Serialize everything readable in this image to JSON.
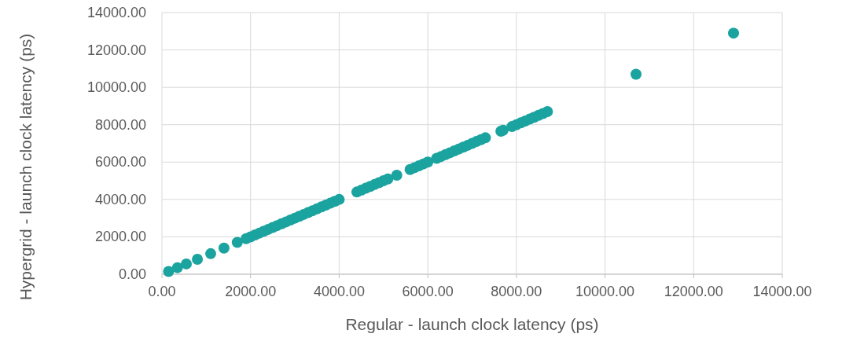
{
  "chart_data": {
    "type": "scatter",
    "xlabel": "Regular - launch clock latency (ps)",
    "ylabel": "Hypergrid - launch clock latency (ps)",
    "x": [
      150,
      350,
      550,
      800,
      1100,
      1400,
      1700,
      1900,
      2000,
      2100,
      2200,
      2300,
      2400,
      2500,
      2600,
      2700,
      2800,
      2900,
      3000,
      3100,
      3200,
      3300,
      3400,
      3500,
      3600,
      3700,
      3800,
      3900,
      4000,
      4400,
      4500,
      4600,
      4700,
      4800,
      4900,
      5000,
      5100,
      5300,
      5600,
      5700,
      5800,
      5900,
      6000,
      6200,
      6300,
      6400,
      6500,
      6600,
      6700,
      6800,
      6900,
      7000,
      7100,
      7200,
      7300,
      7650,
      7700,
      7900,
      8000,
      8100,
      8200,
      8300,
      8400,
      8500,
      8600,
      8700,
      10700,
      12900
    ],
    "series": [
      {
        "color": "#1aa39f",
        "values": [
          150,
          350,
          550,
          800,
          1100,
          1400,
          1700,
          1900,
          2000,
          2100,
          2200,
          2300,
          2400,
          2500,
          2600,
          2700,
          2800,
          2900,
          3000,
          3100,
          3200,
          3300,
          3400,
          3500,
          3600,
          3700,
          3800,
          3900,
          4000,
          4400,
          4500,
          4600,
          4700,
          4800,
          4900,
          5000,
          5100,
          5300,
          5600,
          5700,
          5800,
          5900,
          6000,
          6200,
          6300,
          6400,
          6500,
          6600,
          6700,
          6800,
          6900,
          7000,
          7100,
          7200,
          7300,
          7650,
          7700,
          7900,
          8000,
          8100,
          8200,
          8300,
          8400,
          8500,
          8600,
          8700,
          10700,
          12900
        ]
      }
    ],
    "xlim": [
      0,
      14000
    ],
    "ylim": [
      0,
      14000
    ],
    "xticks": [
      {
        "value": 0,
        "label": "0.00"
      },
      {
        "value": 2000,
        "label": "2000.00"
      },
      {
        "value": 4000,
        "label": "4000.00"
      },
      {
        "value": 6000,
        "label": "6000.00"
      },
      {
        "value": 8000,
        "label": "8000.00"
      },
      {
        "value": 10000,
        "label": "10000.00"
      },
      {
        "value": 12000,
        "label": "12000.00"
      },
      {
        "value": 14000,
        "label": "14000.00"
      }
    ],
    "yticks": [
      {
        "value": 0,
        "label": "0.00"
      },
      {
        "value": 2000,
        "label": "2000.00"
      },
      {
        "value": 4000,
        "label": "4000.00"
      },
      {
        "value": 6000,
        "label": "6000.00"
      },
      {
        "value": 8000,
        "label": "8000.00"
      },
      {
        "value": 10000,
        "label": "10000.00"
      },
      {
        "value": 12000,
        "label": "12000.00"
      },
      {
        "value": 14000,
        "label": "14000.00"
      }
    ],
    "grid": true,
    "marker": "circle"
  }
}
